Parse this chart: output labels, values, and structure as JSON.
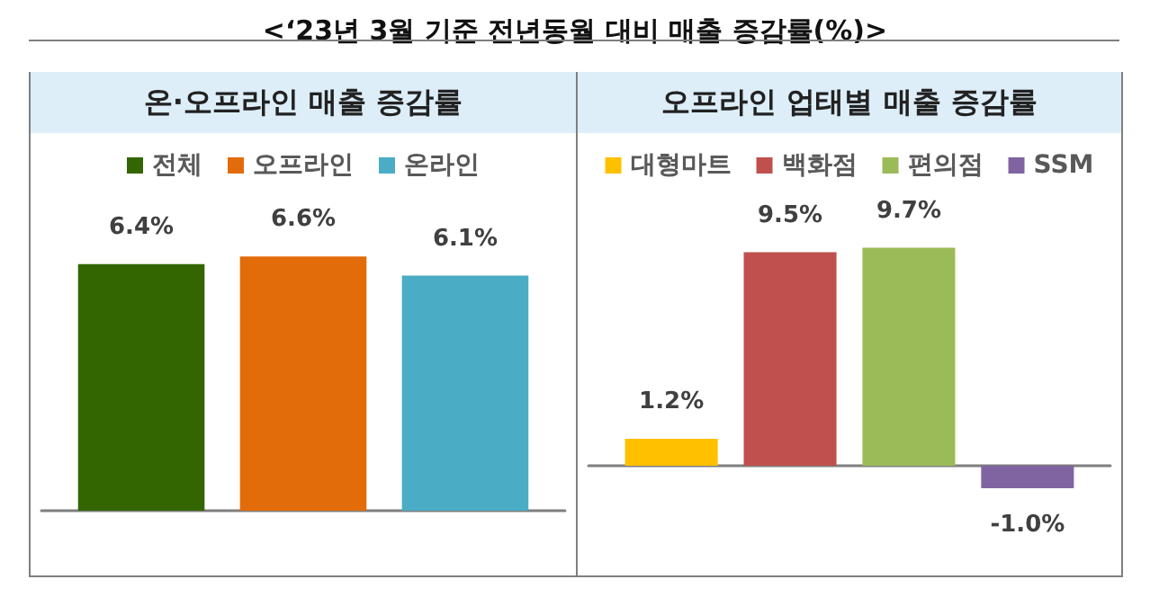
{
  "chart_data": [
    {
      "type": "bar",
      "title": "온·오프라인 매출 증감률",
      "annotations": [
        "<‘23년 3월 기준 전년동월 대비 매출 증감률(%)>"
      ],
      "categories": [
        null
      ],
      "legend": "top",
      "grid": false,
      "tick_labels": false,
      "series": [
        {
          "name": "전체",
          "color": "#336600",
          "values": [
            6.4
          ],
          "value_labels": [
            "6.4%"
          ]
        },
        {
          "name": "오프라인",
          "color": "#e36c0a",
          "values": [
            6.6
          ],
          "value_labels": [
            "6.6%"
          ]
        },
        {
          "name": "온라인",
          "color": "#4bacc6",
          "values": [
            6.1
          ],
          "value_labels": [
            "6.1%"
          ]
        }
      ]
    },
    {
      "type": "bar",
      "title": "오프라인 업태별 매출 증감률",
      "categories": [
        null
      ],
      "legend": "top",
      "grid": false,
      "tick_labels": false,
      "series": [
        {
          "name": "대형마트",
          "color": "#ffc000",
          "values": [
            1.2
          ],
          "value_labels": [
            "1.2%"
          ]
        },
        {
          "name": "백화점",
          "color": "#c0504d",
          "values": [
            9.5
          ],
          "value_labels": [
            "9.5%"
          ]
        },
        {
          "name": "편의점",
          "color": "#9bbb59",
          "values": [
            9.7
          ],
          "value_labels": [
            "9.7%"
          ]
        },
        {
          "name": "SSM",
          "color": "#8064a2",
          "values": [
            -1.0
          ],
          "value_labels": [
            "-1.0%"
          ]
        }
      ]
    }
  ]
}
